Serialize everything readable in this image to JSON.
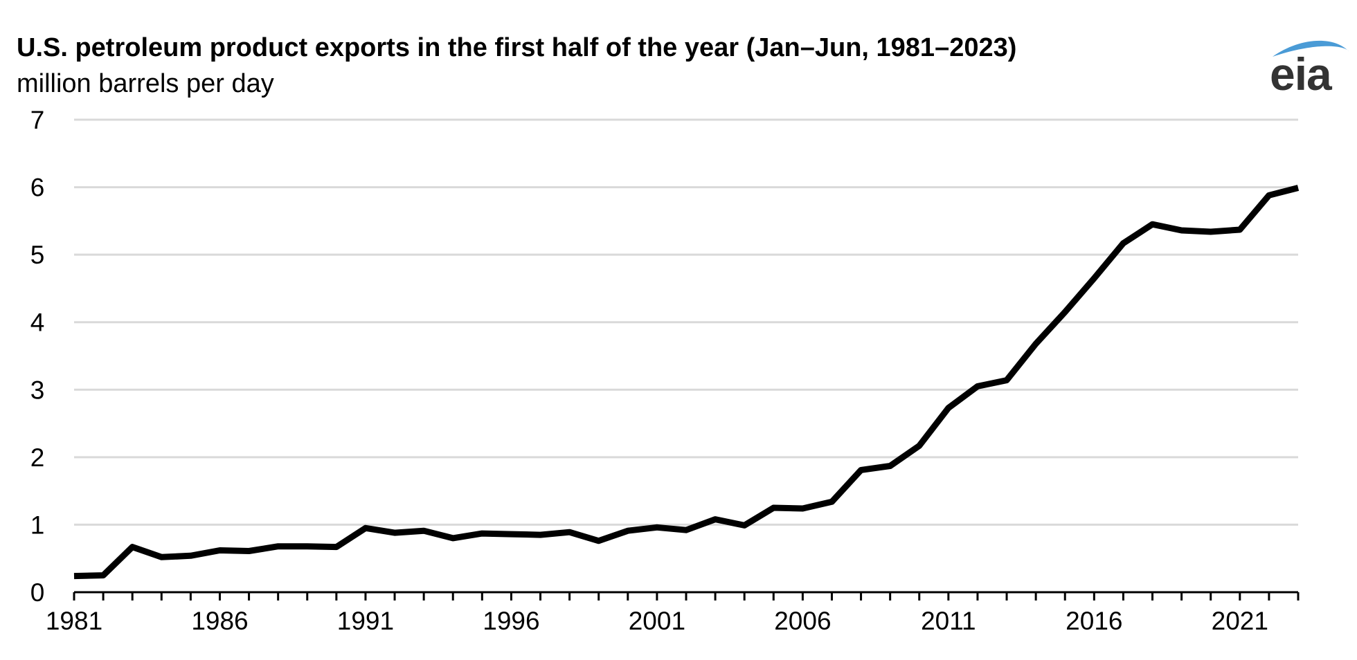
{
  "header": {
    "title": "U.S. petroleum product exports in the first half of the year (Jan–Jun, 1981–2023)",
    "subtitle": "million barrels per day"
  },
  "logo": {
    "text": "eia",
    "arc_color": "#4a9bd6",
    "text_color": "#333333",
    "icon": "eia-logo"
  },
  "colors": {
    "line": "#000000",
    "grid": "#d9d9d9",
    "axis": "#000000"
  },
  "chart_data": {
    "type": "line",
    "title": "U.S. petroleum product exports in the first half of the year (Jan–Jun, 1981–2023)",
    "ylabel": "million barrels per day",
    "xlabel": "",
    "ylim": [
      0,
      7
    ],
    "xlim": [
      1981,
      2023
    ],
    "yticks": [
      0,
      1,
      2,
      3,
      4,
      5,
      6,
      7
    ],
    "xticks": [
      1981,
      1986,
      1991,
      1996,
      2001,
      2006,
      2011,
      2016,
      2021
    ],
    "grid": true,
    "legend": "none",
    "series": [
      {
        "x": [
          1981,
          1982,
          1983,
          1984,
          1985,
          1986,
          1987,
          1988,
          1989,
          1990,
          1991,
          1992,
          1993,
          1994,
          1995,
          1996,
          1997,
          1998,
          1999,
          2000,
          2001,
          2002,
          2003,
          2004,
          2005,
          2006,
          2007,
          2008,
          2009,
          2010,
          2011,
          2012,
          2013,
          2014,
          2015,
          2016,
          2017,
          2018,
          2019,
          2020,
          2021,
          2022,
          2023
        ],
        "values": [
          0.24,
          0.25,
          0.67,
          0.52,
          0.54,
          0.62,
          0.61,
          0.68,
          0.68,
          0.67,
          0.95,
          0.88,
          0.91,
          0.8,
          0.87,
          0.86,
          0.85,
          0.89,
          0.76,
          0.91,
          0.96,
          0.92,
          1.08,
          0.99,
          1.25,
          1.24,
          1.34,
          1.81,
          1.87,
          2.17,
          2.73,
          3.05,
          3.14,
          3.68,
          4.15,
          4.65,
          5.17,
          5.45,
          5.36,
          5.34,
          5.37,
          5.88,
          5.99
        ]
      }
    ]
  }
}
